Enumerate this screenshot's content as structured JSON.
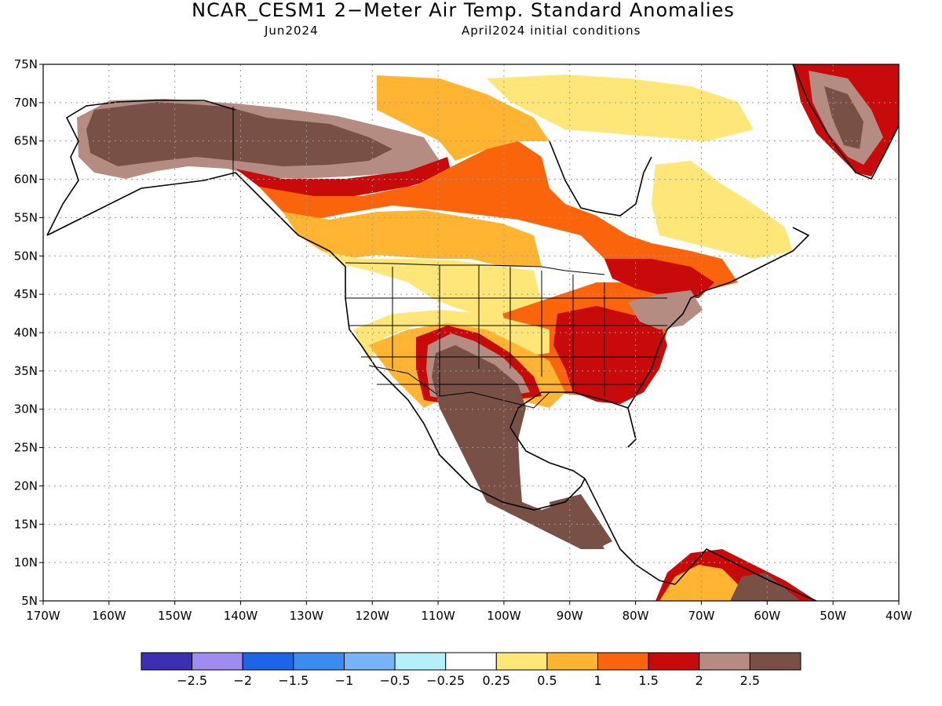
{
  "title": "NCAR_CESM1 2−Meter Air Temp. Standard Anomalies",
  "subtitle_left": "Jun2024",
  "subtitle_right": "April2024 initial conditions",
  "lat_labels": [
    "75N",
    "70N",
    "65N",
    "60N",
    "55N",
    "50N",
    "45N",
    "40N",
    "35N",
    "30N",
    "25N",
    "20N",
    "15N",
    "10N",
    "5N"
  ],
  "lon_labels": [
    "170W",
    "160W",
    "150W",
    "140W",
    "130W",
    "120W",
    "110W",
    "100W",
    "90W",
    "80W",
    "70W",
    "60W",
    "50W",
    "40W"
  ],
  "colorbar": {
    "colors": [
      "#3c2fb4",
      "#a08cf0",
      "#1e64e6",
      "#3c8cf0",
      "#78b4f5",
      "#b4f0fa",
      "#ffffff",
      "#ffe678",
      "#ffb432",
      "#fa640a",
      "#c80a0a",
      "#b48c82",
      "#785046"
    ],
    "labels": [
      "−2.5",
      "−2",
      "−1.5",
      "−1",
      "−0.5",
      "−0.25",
      "0.25",
      "0.5",
      "1",
      "1.5",
      "2",
      "2.5"
    ]
  }
}
